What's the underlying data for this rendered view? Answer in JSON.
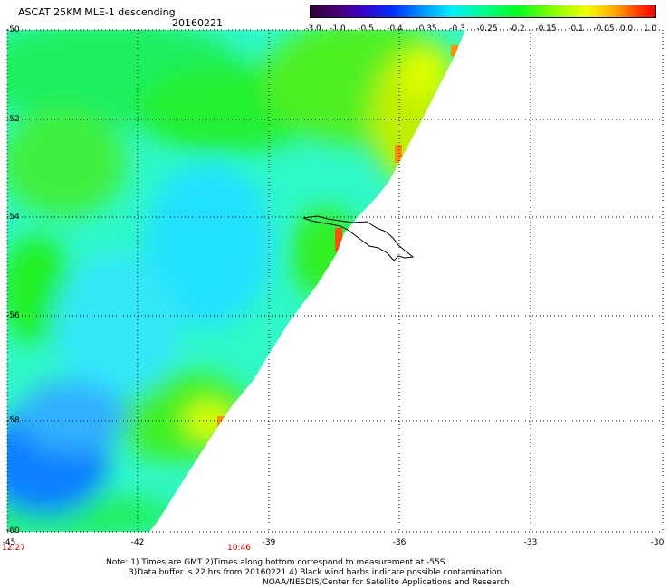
{
  "title": "ASCAT 25KM MLE-1 descending",
  "date": "20160221",
  "colorbar": {
    "labels": [
      "-3.0",
      "-1.0",
      "-0.5",
      "-0.4",
      "-0.35",
      "-0.3",
      "-0.25",
      "-0.2",
      "-0.15",
      "-0.1",
      "-0.05",
      "0.0",
      "1.0"
    ],
    "colors": [
      "#2b0033",
      "#4a0078",
      "#3b00c8",
      "#0030ff",
      "#0090ff",
      "#00f0ff",
      "#00ff90",
      "#00ff20",
      "#80ff00",
      "#f0ff00",
      "#ffb000",
      "#ff4000",
      "#ff0000"
    ]
  },
  "axes": {
    "lat_labels": [
      "-50",
      "-52",
      "-54",
      "-56",
      "-58",
      "-60"
    ],
    "lon_labels": [
      "-45",
      "-42",
      "-39",
      "-36",
      "-33",
      "-30"
    ]
  },
  "times": [
    "12:27",
    "10:46"
  ],
  "notes": [
    "Note: 1) Times are GMT 2)Times along bottom correspond to measurement at -55S",
    "3)Data buffer is 22 hrs from 20160221 4) Black wind barbs indicate possible contamination",
    "NOAA/NESDIS/Center for Satellite Applications and Research"
  ]
}
